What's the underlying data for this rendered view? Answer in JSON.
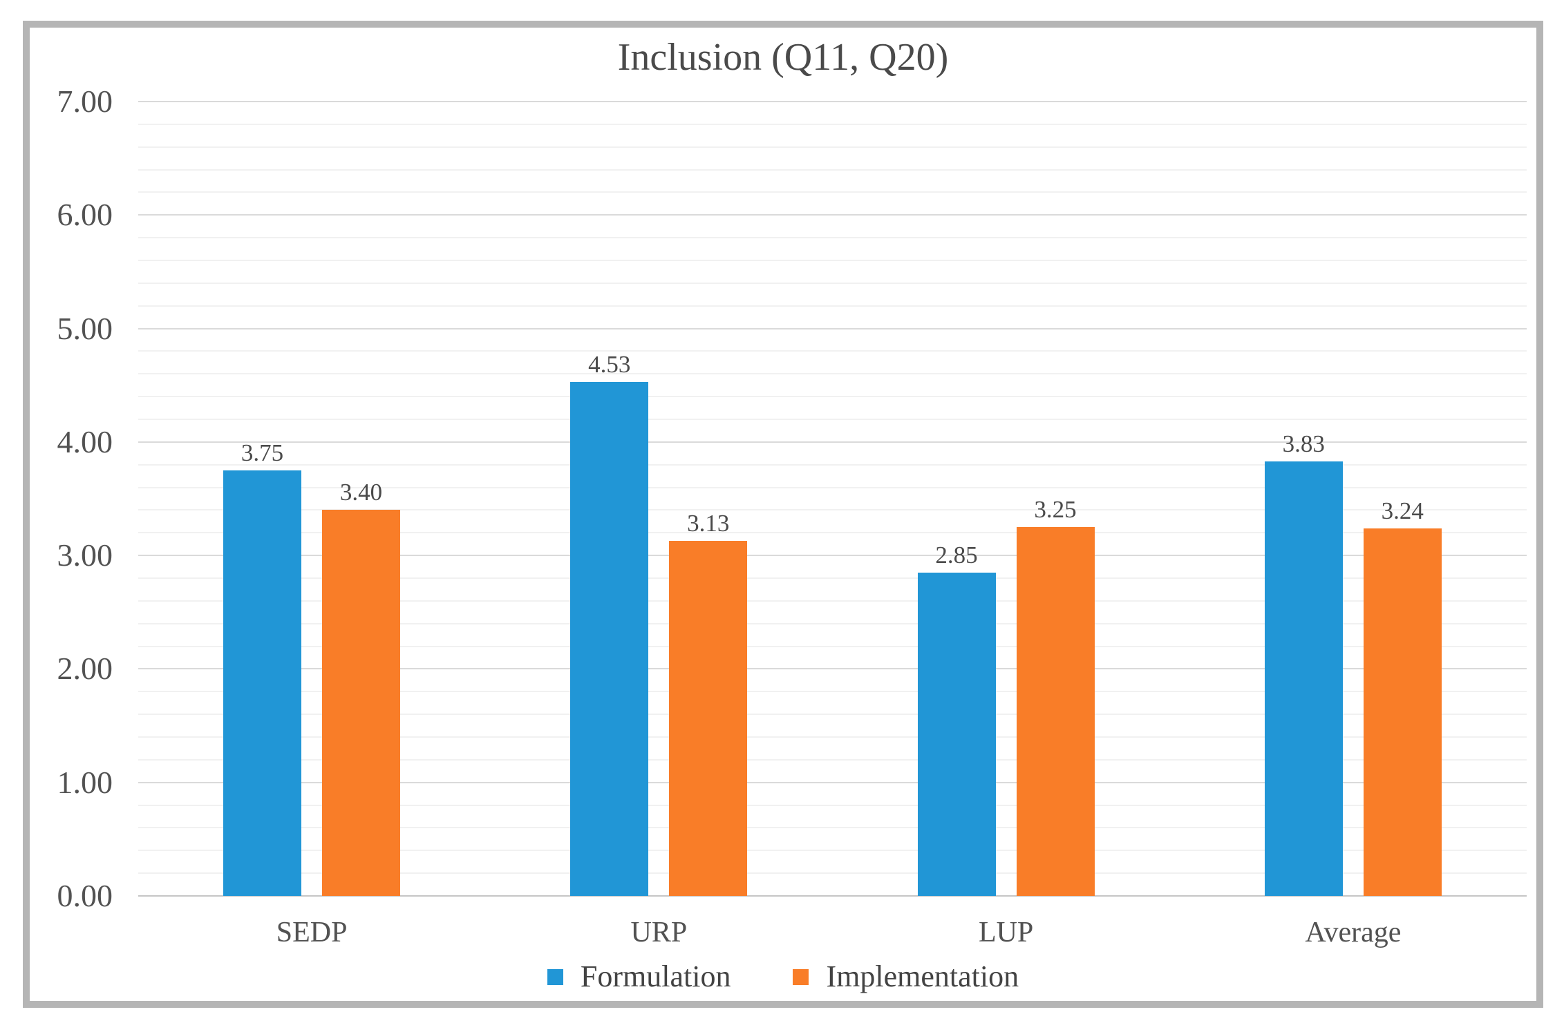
{
  "chart_data": {
    "type": "bar",
    "title": "Inclusion (Q11, Q20)",
    "categories": [
      "SEDP",
      "URP",
      "LUP",
      "Average"
    ],
    "series": [
      {
        "name": "Formulation",
        "color": "#2196d6",
        "values": [
          3.75,
          4.53,
          2.85,
          3.83
        ]
      },
      {
        "name": "Implementation",
        "color": "#f97d28",
        "values": [
          3.4,
          3.13,
          3.25,
          3.24
        ]
      }
    ],
    "ylim": [
      0,
      7
    ],
    "y_major_unit": 1.0,
    "y_minor_unit": 0.2,
    "y_tick_labels": [
      "0.00",
      "1.00",
      "2.00",
      "3.00",
      "4.00",
      "5.00",
      "6.00",
      "7.00"
    ],
    "grid": "horizontal major+minor",
    "legend_position": "bottom",
    "data_labels": "above bars, two decimals"
  },
  "colors": {
    "frame_border": "#b5b5b5",
    "major_gridline": "#dadada",
    "minor_gridline": "#f1f1f1",
    "axis_line": "#c6c6c6",
    "text": "#4a4a4a"
  }
}
